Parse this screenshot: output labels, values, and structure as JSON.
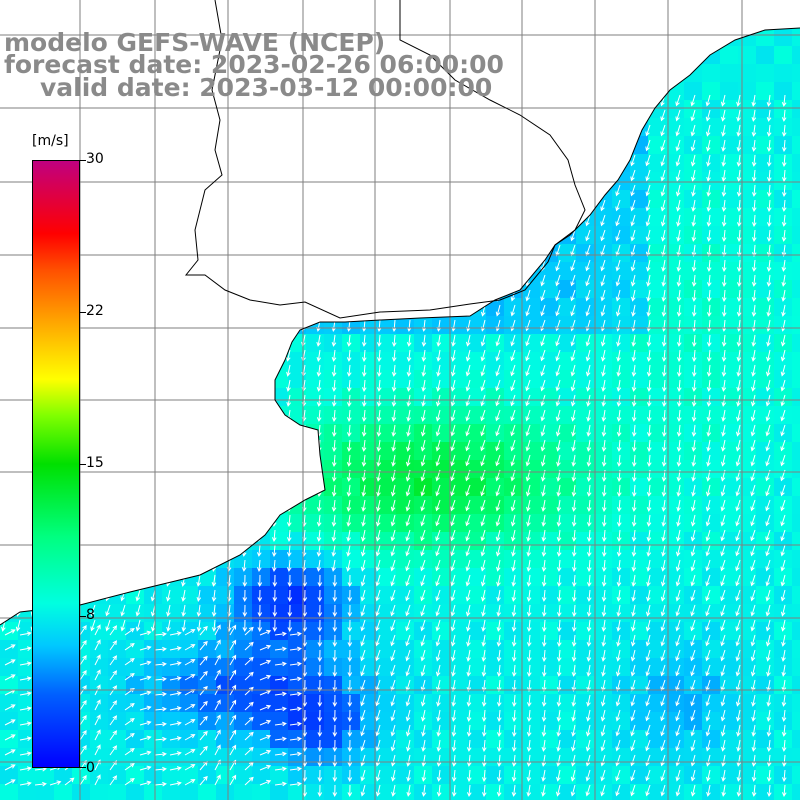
{
  "title": {
    "line1": "modelo GEFS-WAVE (NCEP)",
    "line2": "forecast date: 2023-02-26 06:00:00",
    "line3": "valid date: 2023-03-12 00:00:00"
  },
  "colorbar": {
    "unit": "[m/s]",
    "ticks": [
      "30",
      "22",
      "15",
      "8",
      "0"
    ],
    "tick_values": [
      30,
      22,
      15,
      8,
      0
    ],
    "range": [
      0,
      30
    ]
  },
  "colors": {
    "land": "#ffffff",
    "grid": "#7f7f7f",
    "coast": "#000000",
    "arrow": "#ffffff",
    "title": "#8a8a8a"
  }
}
